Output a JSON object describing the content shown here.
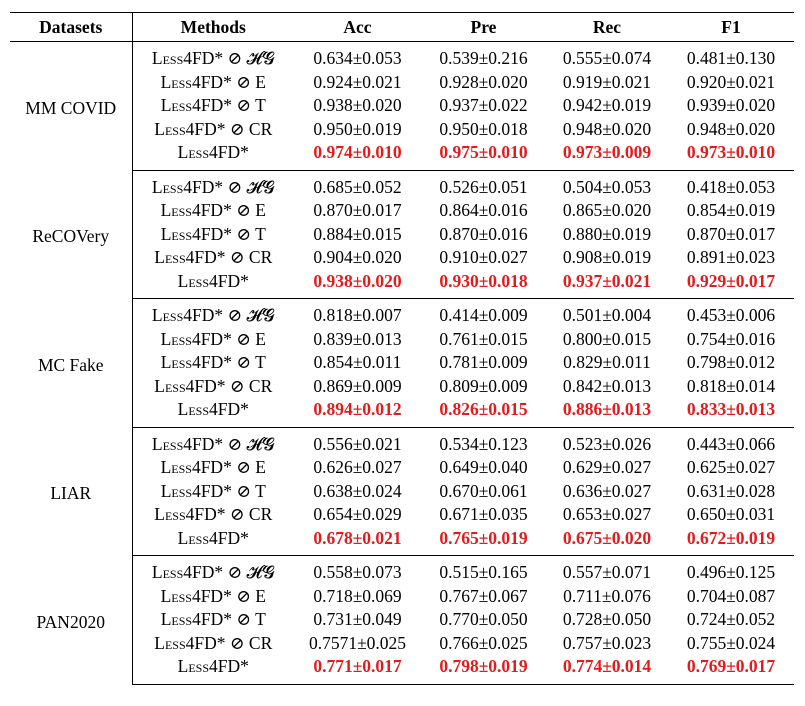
{
  "header": {
    "datasets": "Datasets",
    "methods": "Methods",
    "acc": "Acc",
    "pre": "Pre",
    "rec": "Rec",
    "f1": "F1"
  },
  "colors": {
    "best_highlight": "#e41a1c"
  },
  "groups": [
    {
      "dataset": "MM COVID",
      "rows": [
        {
          "method": "Less4FD* ⊘ 𝓗𝓖",
          "acc": "0.634±0.053",
          "pre": "0.539±0.216",
          "rec": "0.555±0.074",
          "f1": "0.481±0.130"
        },
        {
          "method": "Less4FD* ⊘ E",
          "acc": "0.924±0.021",
          "pre": "0.928±0.020",
          "rec": "0.919±0.021",
          "f1": "0.920±0.021"
        },
        {
          "method": "Less4FD* ⊘ T",
          "acc": "0.938±0.020",
          "pre": "0.937±0.022",
          "rec": "0.942±0.019",
          "f1": "0.939±0.020"
        },
        {
          "method": "Less4FD* ⊘ CR",
          "acc": "0.950±0.019",
          "pre": "0.950±0.018",
          "rec": "0.948±0.020",
          "f1": "0.948±0.020"
        },
        {
          "method": "Less4FD*",
          "acc": "0.974±0.010",
          "pre": "0.975±0.010",
          "rec": "0.973±0.009",
          "f1": "0.973±0.010"
        }
      ]
    },
    {
      "dataset": "ReCOVery",
      "rows": [
        {
          "method": "Less4FD* ⊘ 𝓗𝓖",
          "acc": "0.685±0.052",
          "pre": "0.526±0.051",
          "rec": "0.504±0.053",
          "f1": "0.418±0.053"
        },
        {
          "method": "Less4FD* ⊘ E",
          "acc": "0.870±0.017",
          "pre": "0.864±0.016",
          "rec": "0.865±0.020",
          "f1": "0.854±0.019"
        },
        {
          "method": "Less4FD* ⊘ T",
          "acc": "0.884±0.015",
          "pre": "0.870±0.016",
          "rec": "0.880±0.019",
          "f1": "0.870±0.017"
        },
        {
          "method": "Less4FD* ⊘ CR",
          "acc": "0.904±0.020",
          "pre": "0.910±0.027",
          "rec": "0.908±0.019",
          "f1": "0.891±0.023"
        },
        {
          "method": "Less4FD*",
          "acc": "0.938±0.020",
          "pre": "0.930±0.018",
          "rec": "0.937±0.021",
          "f1": "0.929±0.017"
        }
      ]
    },
    {
      "dataset": "MC Fake",
      "rows": [
        {
          "method": "Less4FD* ⊘ 𝓗𝓖",
          "acc": "0.818±0.007",
          "pre": "0.414±0.009",
          "rec": "0.501±0.004",
          "f1": "0.453±0.006"
        },
        {
          "method": "Less4FD* ⊘ E",
          "acc": "0.839±0.013",
          "pre": "0.761±0.015",
          "rec": "0.800±0.015",
          "f1": "0.754±0.016"
        },
        {
          "method": "Less4FD* ⊘ T",
          "acc": "0.854±0.011",
          "pre": "0.781±0.009",
          "rec": "0.829±0.011",
          "f1": "0.798±0.012"
        },
        {
          "method": "Less4FD* ⊘ CR",
          "acc": "0.869±0.009",
          "pre": "0.809±0.009",
          "rec": "0.842±0.013",
          "f1": "0.818±0.014"
        },
        {
          "method": "Less4FD*",
          "acc": "0.894±0.012",
          "pre": "0.826±0.015",
          "rec": "0.886±0.013",
          "f1": "0.833±0.013"
        }
      ]
    },
    {
      "dataset": "LIAR",
      "rows": [
        {
          "method": "Less4FD* ⊘ 𝓗𝓖",
          "acc": "0.556±0.021",
          "pre": "0.534±0.123",
          "rec": "0.523±0.026",
          "f1": "0.443±0.066"
        },
        {
          "method": "Less4FD* ⊘ E",
          "acc": "0.626±0.027",
          "pre": "0.649±0.040",
          "rec": "0.629±0.027",
          "f1": "0.625±0.027"
        },
        {
          "method": "Less4FD* ⊘ T",
          "acc": "0.638±0.024",
          "pre": "0.670±0.061",
          "rec": "0.636±0.027",
          "f1": "0.631±0.028"
        },
        {
          "method": "Less4FD* ⊘ CR",
          "acc": "0.654±0.029",
          "pre": "0.671±0.035",
          "rec": "0.653±0.027",
          "f1": "0.650±0.031"
        },
        {
          "method": "Less4FD*",
          "acc": "0.678±0.021",
          "pre": "0.765±0.019",
          "rec": "0.675±0.020",
          "f1": "0.672±0.019"
        }
      ]
    },
    {
      "dataset": "PAN2020",
      "rows": [
        {
          "method": "Less4FD* ⊘ 𝓗𝓖",
          "acc": "0.558±0.073",
          "pre": "0.515±0.165",
          "rec": "0.557±0.071",
          "f1": "0.496±0.125"
        },
        {
          "method": "Less4FD* ⊘ E",
          "acc": "0.718±0.069",
          "pre": "0.767±0.067",
          "rec": "0.711±0.076",
          "f1": "0.704±0.087"
        },
        {
          "method": "Less4FD* ⊘ T",
          "acc": "0.731±0.049",
          "pre": "0.770±0.050",
          "rec": "0.728±0.050",
          "f1": "0.724±0.052"
        },
        {
          "method": "Less4FD* ⊘ CR",
          "acc": "0.7571±0.025",
          "pre": "0.766±0.025",
          "rec": "0.757±0.023",
          "f1": "0.755±0.024"
        },
        {
          "method": "Less4FD*",
          "acc": "0.771±0.017",
          "pre": "0.798±0.019",
          "rec": "0.774±0.014",
          "f1": "0.769±0.017"
        }
      ]
    }
  ]
}
